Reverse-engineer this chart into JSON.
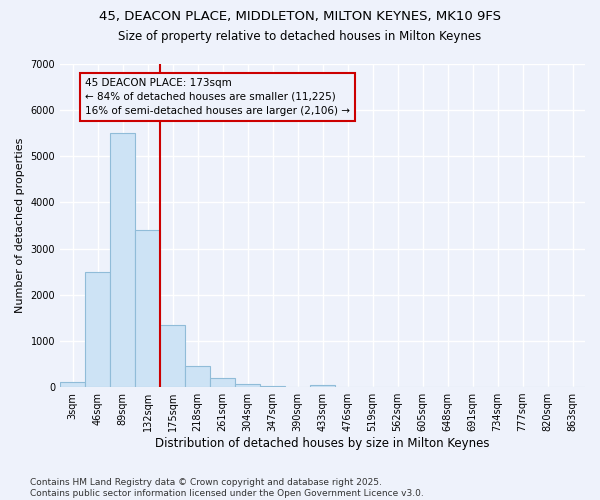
{
  "title_line1": "45, DEACON PLACE, MIDDLETON, MILTON KEYNES, MK10 9FS",
  "title_line2": "Size of property relative to detached houses in Milton Keynes",
  "xlabel": "Distribution of detached houses by size in Milton Keynes",
  "ylabel": "Number of detached properties",
  "categories": [
    "3sqm",
    "46sqm",
    "89sqm",
    "132sqm",
    "175sqm",
    "218sqm",
    "261sqm",
    "304sqm",
    "347sqm",
    "390sqm",
    "433sqm",
    "476sqm",
    "519sqm",
    "562sqm",
    "605sqm",
    "648sqm",
    "691sqm",
    "734sqm",
    "777sqm",
    "820sqm",
    "863sqm"
  ],
  "values": [
    100,
    2500,
    5500,
    3400,
    1350,
    450,
    200,
    70,
    20,
    5,
    50,
    0,
    0,
    0,
    0,
    0,
    0,
    0,
    0,
    0,
    0
  ],
  "bar_color": "#cde3f5",
  "bar_edgecolor": "#90bcd8",
  "vline_index": 4,
  "vline_color": "#cc0000",
  "annotation_title": "45 DEACON PLACE: 173sqm",
  "annotation_line2": "← 84% of detached houses are smaller (11,225)",
  "annotation_line3": "16% of semi-detached houses are larger (2,106) →",
  "annotation_box_edgecolor": "#cc0000",
  "ylim": [
    0,
    7000
  ],
  "yticks": [
    0,
    1000,
    2000,
    3000,
    4000,
    5000,
    6000,
    7000
  ],
  "footer_line1": "Contains HM Land Registry data © Crown copyright and database right 2025.",
  "footer_line2": "Contains public sector information licensed under the Open Government Licence v3.0.",
  "background_color": "#eef2fb",
  "grid_color": "#ffffff",
  "title_fontsize": 9.5,
  "subtitle_fontsize": 8.5,
  "tick_fontsize": 7,
  "ylabel_fontsize": 8,
  "xlabel_fontsize": 8.5,
  "annotation_fontsize": 7.5,
  "footer_fontsize": 6.5
}
